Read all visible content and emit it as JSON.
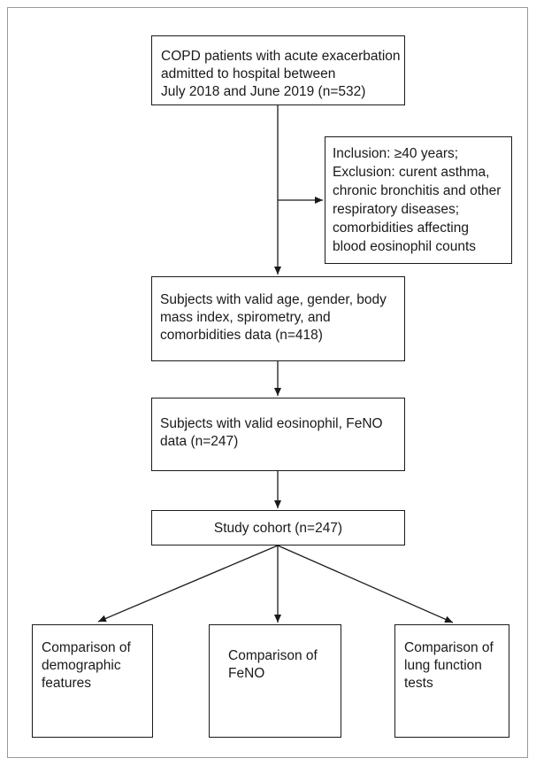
{
  "flowchart": {
    "enrolled": [
      "COPD patients with acute exacerbation",
      "admitted to hospital between",
      "July 2018 and June 2019 (n=532)"
    ],
    "criteria": [
      "Inclusion: ≥40 years;",
      "Exclusion: curent asthma,",
      "chronic bronchitis and other",
      "respiratory diseases;",
      "comorbidities affecting",
      "blood eosinophil counts"
    ],
    "valid_demographics": [
      "Subjects with valid age, gender, body",
      "mass index, spirometry, and",
      "comorbidities data (n=418)"
    ],
    "valid_eosinophil": [
      "Subjects with valid eosinophil, FeNO",
      "data (n=247)"
    ],
    "cohort": [
      "Study cohort (n=247)"
    ],
    "outcome_demographic": [
      "Comparison of",
      "demographic",
      "features"
    ],
    "outcome_feno": [
      "Comparison of",
      "FeNO"
    ],
    "outcome_lung": [
      "Comparison of",
      "lung function",
      "tests"
    ]
  }
}
